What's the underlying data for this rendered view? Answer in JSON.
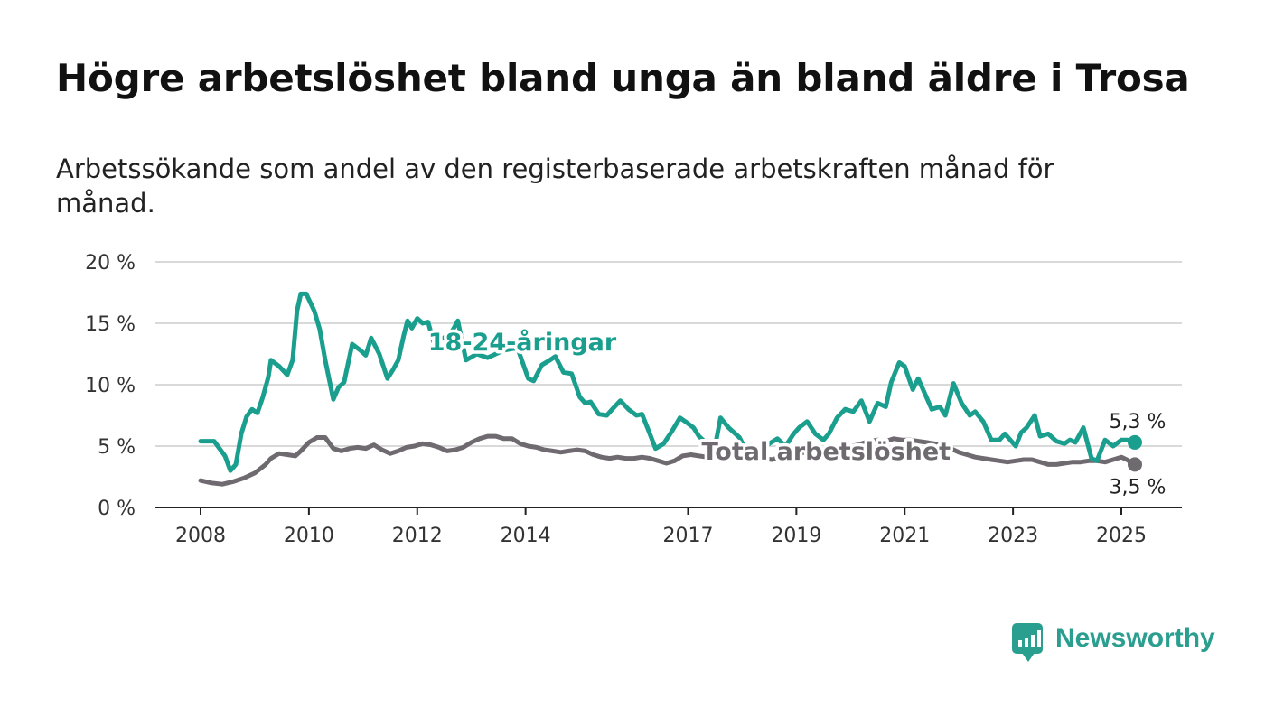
{
  "title": "Högre arbetslöshet bland unga än bland äldre i Trosa",
  "subtitle": "Arbetssökande som andel av den registerbaserade arbetskraften månad för månad.",
  "brand": {
    "name": "Newsworthy",
    "icon": "newsworthy-logo-icon",
    "color": "#2a9e8f"
  },
  "chart_data": {
    "type": "line",
    "title": "",
    "xlabel": "",
    "ylabel": "",
    "ylim": [
      0,
      20
    ],
    "xlim": [
      2008,
      2025.5
    ],
    "grid": true,
    "y_ticks": [
      {
        "value": 0,
        "label": "0 %"
      },
      {
        "value": 5,
        "label": "5 %"
      },
      {
        "value": 10,
        "label": "10 %"
      },
      {
        "value": 15,
        "label": "15 %"
      },
      {
        "value": 20,
        "label": "20 %"
      }
    ],
    "x_ticks": [
      {
        "value": 2008,
        "label": "2008"
      },
      {
        "value": 2010,
        "label": "2010"
      },
      {
        "value": 2012,
        "label": "2012"
      },
      {
        "value": 2014,
        "label": "2014"
      },
      {
        "value": 2017,
        "label": "2017"
      },
      {
        "value": 2019,
        "label": "2019"
      },
      {
        "value": 2021,
        "label": "2021"
      },
      {
        "value": 2023,
        "label": "2023"
      },
      {
        "value": 2025,
        "label": "2025"
      }
    ],
    "series": [
      {
        "name": "18-24-åringar",
        "color": "#1a9e8e",
        "end_label": "5,3 %",
        "x": [
          2008.0,
          2008.25,
          2008.45,
          2008.55,
          2008.65,
          2008.75,
          2008.85,
          2008.95,
          2009.05,
          2009.15,
          2009.25,
          2009.3,
          2009.45,
          2009.6,
          2009.7,
          2009.78,
          2009.85,
          2009.95,
          2010.1,
          2010.2,
          2010.3,
          2010.45,
          2010.55,
          2010.65,
          2010.8,
          2010.95,
          2011.05,
          2011.15,
          2011.3,
          2011.45,
          2011.55,
          2011.65,
          2011.75,
          2011.82,
          2011.9,
          2012.0,
          2012.1,
          2012.2,
          2012.3,
          2012.6,
          2012.75,
          2012.9,
          2013.1,
          2013.3,
          2013.6,
          2013.85,
          2014.05,
          2014.15,
          2014.3,
          2014.45,
          2014.55,
          2014.7,
          2014.85,
          2015.0,
          2015.1,
          2015.2,
          2015.35,
          2015.5,
          2015.6,
          2015.75,
          2015.9,
          2016.05,
          2016.15,
          2016.25,
          2016.4,
          2016.55,
          2016.7,
          2016.85,
          2016.95,
          2017.1,
          2017.2,
          2017.35,
          2017.5,
          2017.6,
          2017.75,
          2017.95,
          2018.05,
          2018.2,
          2018.35,
          2018.5,
          2018.65,
          2018.8,
          2018.95,
          2019.05,
          2019.2,
          2019.35,
          2019.5,
          2019.6,
          2019.75,
          2019.9,
          2020.05,
          2020.2,
          2020.35,
          2020.5,
          2020.65,
          2020.75,
          2020.9,
          2021.0,
          2021.15,
          2021.25,
          2021.4,
          2021.5,
          2021.65,
          2021.75,
          2021.9,
          2022.05,
          2022.2,
          2022.3,
          2022.45,
          2022.6,
          2022.75,
          2022.85,
          2022.95,
          2023.05,
          2023.15,
          2023.25,
          2023.4,
          2023.5,
          2023.65,
          2023.8,
          2023.95,
          2024.05,
          2024.15,
          2024.3,
          2024.45,
          2024.55,
          2024.7,
          2024.85,
          2025.0,
          2025.1,
          2025.25
        ],
        "values": [
          5.4,
          5.4,
          4.2,
          3.0,
          3.5,
          6.0,
          7.4,
          8.0,
          7.7,
          9.0,
          10.6,
          12.0,
          11.5,
          10.8,
          12.0,
          16.0,
          17.4,
          17.4,
          16.0,
          14.5,
          12.0,
          8.8,
          9.8,
          10.2,
          13.3,
          12.8,
          12.4,
          13.8,
          12.5,
          10.5,
          11.2,
          12.0,
          14.0,
          15.2,
          14.6,
          15.4,
          15.0,
          15.1,
          13.5,
          14.0,
          15.2,
          12.0,
          12.5,
          12.2,
          12.8,
          13.0,
          10.5,
          10.3,
          11.6,
          12.0,
          12.3,
          11.0,
          10.9,
          9.0,
          8.5,
          8.6,
          7.6,
          7.5,
          8.0,
          8.7,
          8.0,
          7.5,
          7.6,
          6.5,
          4.8,
          5.2,
          6.2,
          7.3,
          7.0,
          6.5,
          5.8,
          5.2,
          5.0,
          7.3,
          6.5,
          5.7,
          4.8,
          4.6,
          4.5,
          5.2,
          5.6,
          5.0,
          6.0,
          6.5,
          7.0,
          6.0,
          5.5,
          6.0,
          7.3,
          8.0,
          7.8,
          8.7,
          7.0,
          8.5,
          8.2,
          10.2,
          11.8,
          11.5,
          9.6,
          10.5,
          9.0,
          8.0,
          8.2,
          7.5,
          10.1,
          8.5,
          7.5,
          7.8,
          7.0,
          5.5,
          5.5,
          6.0,
          5.5,
          5.0,
          6.1,
          6.5,
          7.5,
          5.8,
          6.0,
          5.4,
          5.2,
          5.5,
          5.3,
          6.5,
          4.0,
          3.8,
          5.5,
          5.0,
          5.5,
          5.5,
          5.3
        ]
      },
      {
        "name": "Total arbetslöshet",
        "color": "#6f6a70",
        "end_label": "3,5 %",
        "x": [
          2008.0,
          2008.2,
          2008.4,
          2008.6,
          2008.8,
          2009.0,
          2009.2,
          2009.3,
          2009.45,
          2009.6,
          2009.75,
          2009.85,
          2010.0,
          2010.15,
          2010.3,
          2010.45,
          2010.6,
          2010.75,
          2010.9,
          2011.05,
          2011.2,
          2011.35,
          2011.5,
          2011.65,
          2011.8,
          2011.95,
          2012.1,
          2012.25,
          2012.4,
          2012.55,
          2012.7,
          2012.85,
          2013.0,
          2013.15,
          2013.3,
          2013.45,
          2013.6,
          2013.75,
          2013.9,
          2014.05,
          2014.2,
          2014.35,
          2014.5,
          2014.65,
          2014.8,
          2014.95,
          2015.1,
          2015.25,
          2015.4,
          2015.55,
          2015.7,
          2015.85,
          2016.0,
          2016.15,
          2016.3,
          2016.45,
          2016.6,
          2016.75,
          2016.9,
          2017.05,
          2017.2,
          2017.35,
          2017.5,
          2017.65,
          2017.8,
          2017.95,
          2018.1,
          2018.25,
          2018.4,
          2018.55,
          2018.7,
          2018.85,
          2019.0,
          2019.15,
          2019.3,
          2019.45,
          2019.6,
          2019.75,
          2019.9,
          2020.05,
          2020.2,
          2020.35,
          2020.5,
          2020.65,
          2020.8,
          2020.95,
          2021.1,
          2021.25,
          2021.4,
          2021.55,
          2021.7,
          2021.85,
          2022.0,
          2022.15,
          2022.3,
          2022.45,
          2022.6,
          2022.75,
          2022.9,
          2023.05,
          2023.2,
          2023.35,
          2023.5,
          2023.65,
          2023.8,
          2023.95,
          2024.1,
          2024.25,
          2024.4,
          2024.55,
          2024.7,
          2024.85,
          2025.0,
          2025.1,
          2025.25
        ],
        "values": [
          2.2,
          2.0,
          1.9,
          2.1,
          2.4,
          2.8,
          3.5,
          4.0,
          4.4,
          4.3,
          4.2,
          4.6,
          5.3,
          5.7,
          5.7,
          4.8,
          4.6,
          4.8,
          4.9,
          4.8,
          5.1,
          4.7,
          4.4,
          4.6,
          4.9,
          5.0,
          5.2,
          5.1,
          4.9,
          4.6,
          4.7,
          4.9,
          5.3,
          5.6,
          5.8,
          5.8,
          5.6,
          5.6,
          5.2,
          5.0,
          4.9,
          4.7,
          4.6,
          4.5,
          4.6,
          4.7,
          4.6,
          4.3,
          4.1,
          4.0,
          4.1,
          4.0,
          4.0,
          4.1,
          4.0,
          3.8,
          3.6,
          3.8,
          4.2,
          4.3,
          4.2,
          4.1,
          4.3,
          4.4,
          4.5,
          4.3,
          4.2,
          4.1,
          4.0,
          3.9,
          4.1,
          4.2,
          4.3,
          4.5,
          4.6,
          4.6,
          4.5,
          4.6,
          4.8,
          5.0,
          5.2,
          5.4,
          5.5,
          5.4,
          5.6,
          5.5,
          5.5,
          5.4,
          5.3,
          5.2,
          5.0,
          4.8,
          4.5,
          4.3,
          4.1,
          4.0,
          3.9,
          3.8,
          3.7,
          3.8,
          3.9,
          3.9,
          3.7,
          3.5,
          3.5,
          3.6,
          3.7,
          3.7,
          3.8,
          3.8,
          3.7,
          3.9,
          4.1,
          3.9,
          3.5
        ]
      }
    ],
    "annotations": [
      {
        "text": "18-24-åringar",
        "x": 2012.2,
        "y": 12.8,
        "series": 0
      },
      {
        "text": "Total arbetslöshet",
        "x": 2017.25,
        "y": 3.9,
        "series": 1
      }
    ]
  }
}
